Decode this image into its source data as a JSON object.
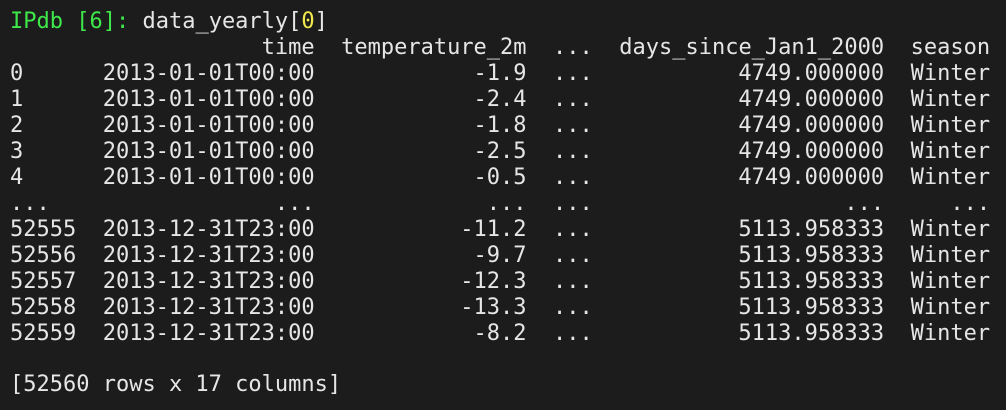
{
  "prompt": {
    "label": "IPdb [6]:",
    "command": "data_yearly[",
    "arg": "0",
    "close": "]"
  },
  "table": {
    "columns": [
      "time",
      "temperature_2m",
      "...",
      "days_since_Jan1_2000",
      "season"
    ],
    "rows": [
      [
        "0",
        "2013-01-01T00:00",
        "-1.9",
        "...",
        "4749.000000",
        "Winter"
      ],
      [
        "1",
        "2013-01-01T00:00",
        "-2.4",
        "...",
        "4749.000000",
        "Winter"
      ],
      [
        "2",
        "2013-01-01T00:00",
        "-1.8",
        "...",
        "4749.000000",
        "Winter"
      ],
      [
        "3",
        "2013-01-01T00:00",
        "-2.5",
        "...",
        "4749.000000",
        "Winter"
      ],
      [
        "4",
        "2013-01-01T00:00",
        "-0.5",
        "...",
        "4749.000000",
        "Winter"
      ],
      [
        "...",
        "...",
        "...",
        "...",
        "...",
        "..."
      ],
      [
        "52555",
        "2013-12-31T23:00",
        "-11.2",
        "...",
        "5113.958333",
        "Winter"
      ],
      [
        "52556",
        "2013-12-31T23:00",
        "-9.7",
        "...",
        "5113.958333",
        "Winter"
      ],
      [
        "52557",
        "2013-12-31T23:00",
        "-12.3",
        "...",
        "5113.958333",
        "Winter"
      ],
      [
        "52558",
        "2013-12-31T23:00",
        "-13.3",
        "...",
        "5113.958333",
        "Winter"
      ],
      [
        "52559",
        "2013-12-31T23:00",
        "-8.2",
        "...",
        "5113.958333",
        "Winter"
      ]
    ]
  },
  "footer": "[52560 rows x 17 columns]"
}
